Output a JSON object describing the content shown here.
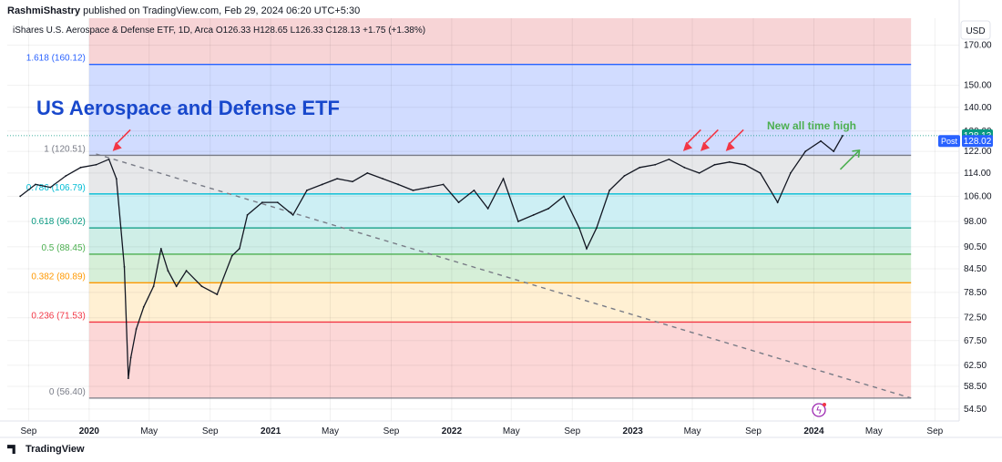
{
  "publisher": {
    "author": "RashmiShastry",
    "text": "published on TradingView.com, Feb 29, 2024 06:20 UTC+5:30"
  },
  "currency": "USD",
  "branding": "TradingView",
  "chart_data": {
    "type": "line",
    "symbol_line": "iShares U.S. Aerospace & Defense ETF, 1D, Arca  O126.33  H128.65  L126.33  C128.13  +1.75 (+1.38%)",
    "title": "US Aerospace and Defense ETF",
    "annotation": "New all time high",
    "y_ticks": [
      "170.00",
      "150.00",
      "140.00",
      "130.00",
      "122.00",
      "114.00",
      "106.00",
      "98.00",
      "90.50",
      "84.50",
      "78.50",
      "72.50",
      "67.50",
      "62.50",
      "58.50",
      "54.50"
    ],
    "y_tick_values": [
      170,
      150,
      140,
      130,
      122,
      114,
      106,
      98,
      90.5,
      84.5,
      78.5,
      72.5,
      67.5,
      62.5,
      58.5,
      54.5
    ],
    "x_ticks": [
      "Sep",
      "2020",
      "May",
      "Sep",
      "2021",
      "May",
      "Sep",
      "2022",
      "May",
      "Sep",
      "2023",
      "May",
      "Sep",
      "2024",
      "May",
      "Sep"
    ],
    "x_tick_dates": [
      "2019-09-01",
      "2020-01-01",
      "2020-05-01",
      "2020-09-01",
      "2021-01-01",
      "2021-05-01",
      "2021-09-01",
      "2022-01-01",
      "2022-05-01",
      "2022-09-01",
      "2023-01-01",
      "2023-05-01",
      "2023-09-01",
      "2024-01-01",
      "2024-05-01",
      "2024-09-01"
    ],
    "log_scale": true,
    "last_price": {
      "label": "128.13",
      "value": 128.13
    },
    "post_price": {
      "tag": "Post",
      "label": "128.02",
      "value": 128.02
    },
    "fib_levels": [
      {
        "ratio": "1.618",
        "label": "1.618 (160.12)",
        "value": 160.12,
        "color": "#2962ff"
      },
      {
        "ratio": "1",
        "label": "1 (120.51)",
        "value": 120.51,
        "color": "#787b86"
      },
      {
        "ratio": "0.786",
        "label": "0.786 (106.79)",
        "value": 106.79,
        "color": "#00bcd4"
      },
      {
        "ratio": "0.618",
        "label": "0.618 (96.02)",
        "value": 96.02,
        "color": "#089981"
      },
      {
        "ratio": "0.5",
        "label": "0.5 (88.45)",
        "value": 88.45,
        "color": "#4caf50"
      },
      {
        "ratio": "0.382",
        "label": "0.382 (80.89)",
        "value": 80.89,
        "color": "#ff9800"
      },
      {
        "ratio": "0.236",
        "label": "0.236 (71.53)",
        "value": 71.53,
        "color": "#f23645"
      },
      {
        "ratio": "0",
        "label": "0 (56.40)",
        "value": 56.4,
        "color": "#787b86"
      }
    ],
    "fib_range": {
      "start_date": "2020-01-01",
      "end_date": "2024-07-15"
    },
    "series": [
      {
        "x": [
          "2019-08-15",
          "2019-09-15",
          "2019-10-15",
          "2019-11-15",
          "2019-12-15",
          "2020-01-15",
          "2020-02-10",
          "2020-02-25",
          "2020-03-05",
          "2020-03-12",
          "2020-03-20",
          "2020-03-25",
          "2020-04-05",
          "2020-04-20",
          "2020-05-10",
          "2020-05-25",
          "2020-06-08",
          "2020-06-25",
          "2020-07-15",
          "2020-08-15",
          "2020-09-15",
          "2020-10-15",
          "2020-10-30",
          "2020-11-15",
          "2020-12-15",
          "2021-01-15",
          "2021-02-15",
          "2021-03-15",
          "2021-04-15",
          "2021-05-15",
          "2021-06-15",
          "2021-07-15",
          "2021-08-15",
          "2021-09-15",
          "2021-10-15",
          "2021-11-15",
          "2021-12-15",
          "2022-01-15",
          "2022-02-15",
          "2022-03-15",
          "2022-04-15",
          "2022-05-15",
          "2022-06-15",
          "2022-07-15",
          "2022-08-15",
          "2022-09-15",
          "2022-09-30",
          "2022-10-20",
          "2022-11-15",
          "2022-12-15",
          "2023-01-15",
          "2023-02-15",
          "2023-03-15",
          "2023-04-15",
          "2023-05-15",
          "2023-06-15",
          "2023-07-15",
          "2023-08-15",
          "2023-09-15",
          "2023-10-20",
          "2023-11-15",
          "2023-12-15",
          "2024-01-15",
          "2024-02-10",
          "2024-02-28"
        ],
        "y": [
          106,
          110,
          109,
          113,
          116,
          117,
          119,
          112,
          96,
          85,
          60,
          64,
          70,
          75,
          80,
          90,
          84,
          80,
          84,
          80,
          78,
          88,
          90,
          100,
          104,
          104,
          100,
          108,
          110,
          112,
          111,
          114,
          112,
          110,
          108,
          109,
          110,
          104,
          108,
          102,
          112,
          98,
          100,
          102,
          106,
          96,
          90,
          96,
          108,
          113,
          116,
          117,
          119,
          116,
          114,
          117,
          118,
          117,
          114,
          104,
          114,
          122,
          126,
          122,
          128.13
        ]
      }
    ],
    "trendline": {
      "start": {
        "x": "2020-01-15",
        "y": 121
      },
      "end": {
        "x": "2024-07-15",
        "y": 56.4
      }
    },
    "arrows": {
      "red_dates": [
        "2020-02-20",
        "2023-04-15",
        "2023-05-20",
        "2023-07-10"
      ],
      "green_date": "2024-03-20"
    },
    "grid": true
  }
}
